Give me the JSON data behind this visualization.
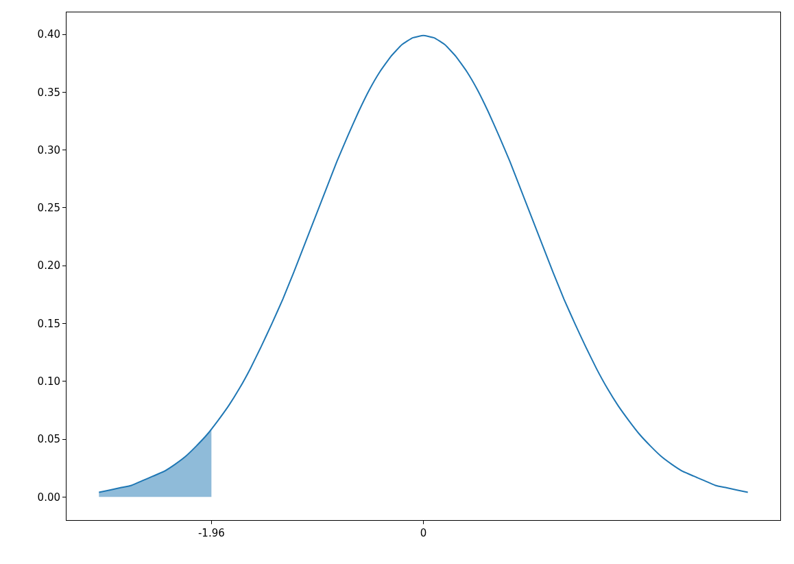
{
  "chart_data": {
    "type": "line",
    "series": [
      {
        "type": "area",
        "color": "#8fbbd9",
        "x": [
          -3,
          -2.9,
          -2.8,
          -2.7,
          -2.6,
          -2.5,
          -2.4,
          -2.3,
          -2.2,
          -2.1,
          -2.0,
          -1.96
        ],
        "values": [
          0.004,
          0.006,
          0.008,
          0.01,
          0.014,
          0.018,
          0.022,
          0.028,
          0.035,
          0.044,
          0.054,
          0.058
        ]
      },
      {
        "color": "#1f77b4",
        "x": [
          -3,
          -2.9,
          -2.8,
          -2.7,
          -2.6,
          -2.5,
          -2.4,
          -2.3,
          -2.2,
          -2.1,
          -2.0,
          -1.9,
          -1.8,
          -1.7,
          -1.6,
          -1.5,
          -1.4,
          -1.3,
          -1.2,
          -1.1,
          -1.0,
          -0.9,
          -0.8,
          -0.7,
          -0.6,
          -0.5,
          -0.4,
          -0.3,
          -0.2,
          -0.1,
          0,
          0.1,
          0.2,
          0.3,
          0.4,
          0.5,
          0.6,
          0.7,
          0.8,
          0.9,
          1.0,
          1.1,
          1.2,
          1.3,
          1.4,
          1.5,
          1.6,
          1.7,
          1.8,
          1.9,
          2.0,
          2.1,
          2.2,
          2.3,
          2.4,
          2.5,
          2.6,
          2.7,
          2.8,
          2.9,
          3.0
        ],
        "values": [
          0.004,
          0.006,
          0.008,
          0.01,
          0.014,
          0.018,
          0.022,
          0.028,
          0.035,
          0.044,
          0.054,
          0.066,
          0.079,
          0.094,
          0.111,
          0.13,
          0.15,
          0.171,
          0.194,
          0.218,
          0.242,
          0.266,
          0.29,
          0.312,
          0.333,
          0.352,
          0.368,
          0.381,
          0.391,
          0.397,
          0.399,
          0.397,
          0.391,
          0.381,
          0.368,
          0.352,
          0.333,
          0.312,
          0.29,
          0.266,
          0.242,
          0.218,
          0.194,
          0.171,
          0.15,
          0.13,
          0.111,
          0.094,
          0.079,
          0.066,
          0.054,
          0.044,
          0.035,
          0.028,
          0.022,
          0.018,
          0.014,
          0.01,
          0.008,
          0.006,
          0.004
        ]
      }
    ],
    "xlim": [
      -3.3,
      3.3
    ],
    "xticks": [
      -1.96,
      0
    ],
    "ylim": [
      -0.02,
      0.419
    ],
    "yticks": [
      {
        "value": 0,
        "label": "0.00"
      },
      {
        "value": 0.05,
        "label": "0.05"
      },
      {
        "value": 0.1,
        "label": "0.10"
      },
      {
        "value": 0.15,
        "label": "0.15"
      },
      {
        "value": 0.2,
        "label": "0.20"
      },
      {
        "value": 0.25,
        "label": "0.25"
      },
      {
        "value": 0.3,
        "label": "0.30"
      },
      {
        "value": 0.35,
        "label": "0.35"
      },
      {
        "value": 0.4,
        "label": "0.40"
      }
    ]
  }
}
